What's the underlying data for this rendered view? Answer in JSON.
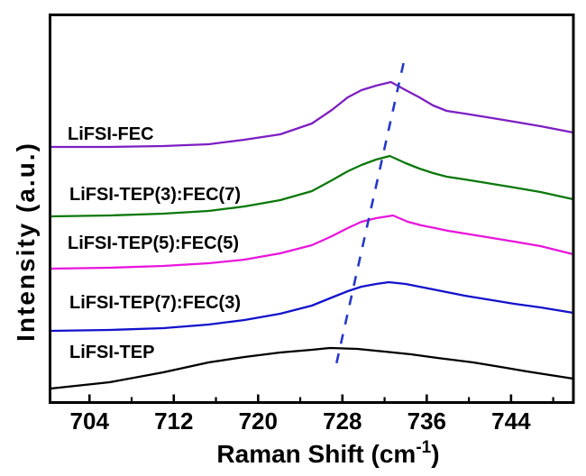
{
  "figure": {
    "kind": "raman-spectra-plot",
    "background": "#ffffff",
    "border_color": "#000000"
  },
  "chart_data": {
    "type": "line",
    "title": "",
    "xlabel": "Raman Shift (cm-1)",
    "xlabel_parts": {
      "pre": "Raman Shift (cm",
      "sup": "-1",
      "post": ")"
    },
    "ylabel": "Intensity (a.u.)",
    "x_range": [
      700.3,
      750
    ],
    "y_range": [
      0,
      432
    ],
    "y_units": "arbitrary (a.u.), curves vertically offset",
    "grid": false,
    "legend_position": "inline-labels",
    "x_ticks_major": [
      704,
      712,
      720,
      728,
      736,
      744
    ],
    "x_ticks_minor": [
      708,
      716,
      724,
      732,
      740,
      748
    ],
    "axis_color": "#000000",
    "series": [
      {
        "name": "LiFSI-FEC",
        "label": "LiFSI-FEC",
        "color": "#7d1fc3",
        "peak_cm1": 732.6,
        "points": [
          [
            700.3,
            284
          ],
          [
            705.9,
            284
          ],
          [
            711.0,
            285
          ],
          [
            715.3,
            287
          ],
          [
            718.7,
            292
          ],
          [
            722.1,
            298
          ],
          [
            725.1,
            310
          ],
          [
            727.0,
            325
          ],
          [
            728.5,
            339
          ],
          [
            729.8,
            347
          ],
          [
            731.2,
            352
          ],
          [
            732.6,
            356
          ],
          [
            734.0,
            347
          ],
          [
            735.3,
            339
          ],
          [
            736.6,
            330
          ],
          [
            737.9,
            324
          ],
          [
            739.6,
            321
          ],
          [
            741.7,
            317
          ],
          [
            744.3,
            312
          ],
          [
            746.8,
            307
          ],
          [
            749.9,
            300
          ]
        ]
      },
      {
        "name": "LiFSI-TEP(3):FEC(7)",
        "label": "LiFSI-TEP(3):FEC(7)",
        "color": "#0a780a",
        "peak_cm1": 732.5,
        "points": [
          [
            700.3,
            207
          ],
          [
            705.9,
            208
          ],
          [
            711.0,
            210
          ],
          [
            715.3,
            213
          ],
          [
            718.7,
            218
          ],
          [
            722.1,
            225
          ],
          [
            725.1,
            235
          ],
          [
            727.0,
            247
          ],
          [
            728.5,
            257
          ],
          [
            729.8,
            264
          ],
          [
            731.2,
            270
          ],
          [
            732.5,
            274
          ],
          [
            734.0,
            266
          ],
          [
            735.3,
            260
          ],
          [
            736.6,
            255
          ],
          [
            737.9,
            251
          ],
          [
            739.6,
            248
          ],
          [
            741.7,
            244
          ],
          [
            744.3,
            239
          ],
          [
            746.8,
            234
          ],
          [
            749.9,
            226
          ]
        ]
      },
      {
        "name": "LiFSI-TEP(5):FEC(5)",
        "label": "LiFSI-TEP(5):FEC(5)",
        "color": "#e816dd",
        "peak_cm1": 732.8,
        "points": [
          [
            700.3,
            149
          ],
          [
            705.9,
            150
          ],
          [
            711.0,
            152
          ],
          [
            715.3,
            155
          ],
          [
            718.7,
            159
          ],
          [
            722.1,
            166
          ],
          [
            725.1,
            175
          ],
          [
            727.0,
            185
          ],
          [
            728.5,
            194
          ],
          [
            729.8,
            201
          ],
          [
            731.2,
            205
          ],
          [
            732.8,
            208
          ],
          [
            734.2,
            201
          ],
          [
            735.5,
            197
          ],
          [
            736.8,
            194
          ],
          [
            738.0,
            191
          ],
          [
            739.6,
            188
          ],
          [
            741.7,
            184
          ],
          [
            744.3,
            179
          ],
          [
            746.8,
            174
          ],
          [
            749.9,
            165
          ]
        ]
      },
      {
        "name": "LiFSI-TEP(7):FEC(3)",
        "label": "LiFSI-TEP(7):FEC(3)",
        "color": "#1212cc",
        "peak_cm1": 732.0,
        "points": [
          [
            700.3,
            80
          ],
          [
            705.9,
            81
          ],
          [
            711.0,
            83
          ],
          [
            715.3,
            87
          ],
          [
            718.7,
            92
          ],
          [
            722.1,
            99
          ],
          [
            725.1,
            108
          ],
          [
            727.0,
            117
          ],
          [
            728.5,
            124
          ],
          [
            729.8,
            129
          ],
          [
            731.2,
            132
          ],
          [
            732.4,
            134
          ],
          [
            734.0,
            132
          ],
          [
            735.3,
            129
          ],
          [
            736.6,
            126
          ],
          [
            737.9,
            123
          ],
          [
            739.6,
            119
          ],
          [
            741.7,
            115
          ],
          [
            744.3,
            110
          ],
          [
            746.8,
            106
          ],
          [
            749.9,
            100
          ]
        ]
      },
      {
        "name": "LiFSI-TEP",
        "label": "LiFSI-TEP",
        "color": "#000000",
        "peak_cm1": 727.0,
        "points": [
          [
            700.3,
            16
          ],
          [
            705.9,
            23
          ],
          [
            711.0,
            34
          ],
          [
            715.3,
            45
          ],
          [
            718.7,
            51
          ],
          [
            722.1,
            56
          ],
          [
            725.1,
            59
          ],
          [
            726.8,
            61
          ],
          [
            729.4,
            60
          ],
          [
            732.0,
            57
          ],
          [
            734.5,
            54
          ],
          [
            737.0,
            50
          ],
          [
            740.4,
            45
          ],
          [
            743.0,
            40
          ],
          [
            745.5,
            35
          ],
          [
            749.9,
            27
          ]
        ]
      }
    ],
    "trend_line": {
      "name": "peak-shift-guide",
      "style": "dashed",
      "color": "#2438cc",
      "points": [
        [
          733.8,
          377
        ],
        [
          727.4,
          42
        ]
      ]
    }
  }
}
